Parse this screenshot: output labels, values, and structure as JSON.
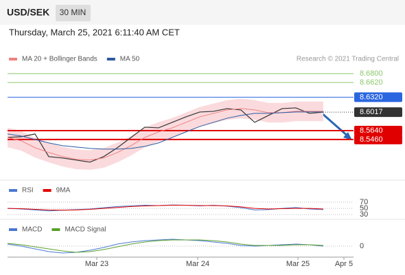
{
  "header": {
    "symbol": "USD/SEK",
    "interval": "30 MIN",
    "timestamp": "Thursday, March 25, 2021 6:11:40 AM CET"
  },
  "chart_data": [
    {
      "type": "line",
      "source": "Research © 2021 Trading Central",
      "color": "#333333",
      "values": [
        8.5502,
        8.5516,
        8.5572,
        8.5111,
        8.5083,
        8.5041,
        8.4999,
        8.5111,
        8.5292,
        8.5502,
        8.5711,
        8.5697,
        8.5809,
        8.5921,
        8.6019,
        8.6033,
        8.6089,
        8.6061,
        8.5809,
        8.5949,
        8.6089,
        8.6103,
        8.5991,
        8.6017
      ],
      "band": {
        "color": "#fadadd",
        "upper": [
          8.5702,
          8.5632,
          8.5492,
          8.5395,
          8.5311,
          8.5255,
          8.5241,
          8.5283,
          8.5395,
          8.5534,
          8.5702,
          8.5814,
          8.5897,
          8.6009,
          8.6121,
          8.6191,
          8.6261,
          8.6289,
          8.6261,
          8.6205,
          8.6205,
          8.6233,
          8.6233,
          8.6233
        ],
        "lower": [
          8.5302,
          8.5232,
          8.5092,
          8.4995,
          8.4911,
          8.4855,
          8.4841,
          8.4883,
          8.4995,
          8.5134,
          8.5302,
          8.5414,
          8.5497,
          8.5609,
          8.5721,
          8.5791,
          8.5861,
          8.5889,
          8.5861,
          8.5805,
          8.5805,
          8.5833,
          8.5833,
          8.5833
        ]
      },
      "series": [
        {
          "name": "MA 20 + Bollinger Bands",
          "color": "#f08080",
          "values": [
            8.5502,
            8.5432,
            8.5292,
            8.5195,
            8.5111,
            8.5055,
            8.5041,
            8.5083,
            8.5195,
            8.5334,
            8.5502,
            8.5614,
            8.5697,
            8.5809,
            8.5921,
            8.5991,
            8.6061,
            8.6089,
            8.6061,
            8.6005,
            8.6005,
            8.6033,
            8.6033,
            8.6033
          ]
        },
        {
          "name": "MA 50",
          "color": "#2c5aa0",
          "values": [
            8.5572,
            8.553,
            8.546,
            8.539,
            8.5334,
            8.5306,
            8.5278,
            8.5264,
            8.5264,
            8.5278,
            8.532,
            8.539,
            8.5502,
            8.5614,
            8.5725,
            8.5809,
            8.5893,
            8.5949,
            8.5991,
            8.5991,
            8.6005,
            8.6019,
            8.6019,
            8.6019
          ]
        }
      ],
      "levels": [
        {
          "value": 8.68,
          "label": "8.6800",
          "color": "#8bc86a",
          "style": "plain"
        },
        {
          "value": 8.662,
          "label": "8.6620",
          "color": "#8bc86a",
          "style": "plain"
        },
        {
          "value": 8.632,
          "label": "8.6320",
          "color": "#2a66e0",
          "style": "boxed"
        },
        {
          "value": 8.6017,
          "label": "8.6017",
          "color": "#333333",
          "style": "dotted"
        },
        {
          "value": 8.564,
          "label": "8.5640",
          "color": "#e00000",
          "style": "boxed"
        },
        {
          "value": 8.546,
          "label": "8.5460",
          "color": "#e00000",
          "style": "boxed"
        }
      ],
      "ylim": [
        8.466,
        8.697
      ]
    },
    {
      "type": "line",
      "series": [
        {
          "name": "RSI",
          "color": "#4a78d0",
          "values": [
            50,
            48,
            45,
            42,
            44,
            46,
            48,
            52,
            56,
            58,
            60,
            59,
            61,
            60,
            58,
            60,
            57,
            52,
            45,
            46,
            50,
            53,
            48,
            46
          ]
        },
        {
          "name": "9MA",
          "color": "#e00000",
          "values": [
            50,
            49,
            47,
            45,
            44,
            45,
            47,
            50,
            53,
            56,
            58,
            59,
            60,
            60,
            59,
            59,
            58,
            55,
            50,
            48,
            49,
            50,
            50,
            48
          ]
        }
      ],
      "ylim": [
        17,
        90
      ],
      "yticks": [
        70,
        50,
        30
      ]
    },
    {
      "type": "line",
      "series": [
        {
          "name": "MACD",
          "color": "#4a78d0",
          "values": [
            0.00075,
            0,
            -0.001,
            -0.002,
            -0.0025,
            -0.00225,
            -0.0015,
            -0.0005,
            0.00075,
            0.0015,
            0.002,
            0.00225,
            0.0025,
            0.00225,
            0.002,
            0.0015,
            0.001,
            0.00025,
            0,
            0.00025,
            0.0005,
            0.00075,
            0.0005,
            0
          ]
        },
        {
          "name": "MACD Signal",
          "color": "#5aa02c",
          "values": [
            0.001,
            0.0005,
            -0.00025,
            -0.001,
            -0.00175,
            -0.00225,
            -0.002,
            -0.00125,
            -0.00025,
            0.00075,
            0.0015,
            0.002,
            0.00225,
            0.00225,
            0.00225,
            0.002,
            0.0015,
            0.00075,
            0.00025,
            0.00025,
            0.00025,
            0.0005,
            0.0005,
            0.00025
          ]
        }
      ],
      "ylim": [
        -0.0035,
        0.007
      ],
      "yticks": [
        0
      ],
      "x_labels": [
        "Mar 23",
        "Mar 24",
        "Mar 25",
        "Apr 5"
      ]
    }
  ]
}
